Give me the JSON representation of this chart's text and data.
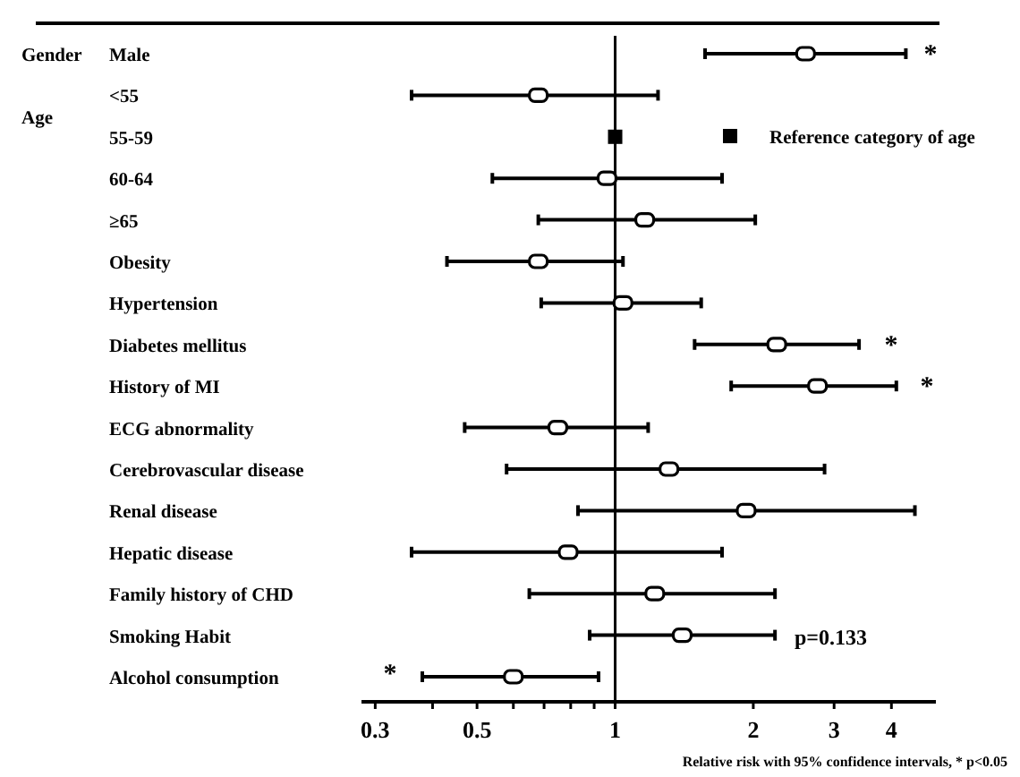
{
  "chart_data": {
    "type": "scatter",
    "orientation": "horizontal",
    "log": "x",
    "marker": "square",
    "legend": "right",
    "grid": false,
    "xlabel": "Relative risk with 95% confidence intervals, * p<0.05",
    "categories": [
      "Male",
      "<55",
      "55-59",
      "60-64",
      "≥65",
      "Obesity",
      "Hypertension",
      "Diabetes mellitus",
      "History of MI",
      "ECG abnormality",
      "Cerebrovascular disease",
      "Renal disease",
      "Hepatic disease",
      "Family history of CHD",
      "Smoking Habit",
      "Alcohol consumption"
    ],
    "xlim": [
      0.28,
      5
    ],
    "xticks": [
      0.3,
      {
        "value": 0.4,
        "label": null
      },
      0.5,
      {
        "value": 0.6,
        "label": null
      },
      {
        "value": 0.7,
        "label": null
      },
      {
        "value": 0.8,
        "label": null
      },
      {
        "value": 0.9,
        "label": null
      },
      1,
      2,
      3,
      4
    ],
    "series": [
      {
        "color": "#000000",
        "values": [
          2.6,
          0.68,
          null,
          0.96,
          1.16,
          0.68,
          1.04,
          2.25,
          2.76,
          0.75,
          1.31,
          1.93,
          0.79,
          1.22,
          1.4,
          0.6
        ],
        "errors": [
          [
            1.57,
            4.3
          ],
          [
            0.36,
            1.24
          ],
          null,
          [
            0.54,
            1.71
          ],
          [
            0.68,
            2.02
          ],
          [
            0.43,
            1.04
          ],
          [
            0.69,
            1.54
          ],
          [
            1.49,
            3.4
          ],
          [
            1.79,
            4.1
          ],
          [
            0.47,
            1.18
          ],
          [
            0.58,
            2.86
          ],
          [
            0.83,
            4.5
          ],
          [
            0.36,
            1.71
          ],
          [
            0.65,
            2.23
          ],
          [
            0.88,
            2.23
          ],
          [
            0.38,
            0.92
          ]
        ]
      },
      {
        "name": "Reference category of age",
        "color": "#000000",
        "values": [
          null,
          null,
          1,
          null,
          null,
          null,
          null,
          null,
          null,
          null,
          null,
          null,
          null,
          null,
          null,
          null
        ]
      }
    ],
    "ref_lines": [
      {
        "axis": "x",
        "value": 1
      }
    ],
    "annotations": [
      "Gender",
      "Age",
      "*",
      "*",
      "*",
      "*",
      "p=0.133"
    ]
  }
}
